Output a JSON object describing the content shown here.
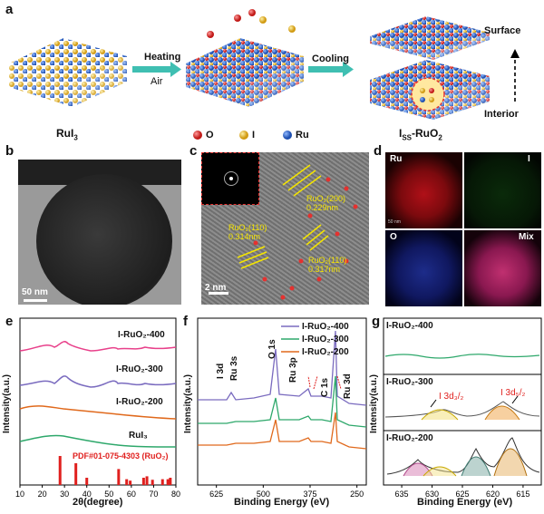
{
  "panel_a": {
    "letter": "a",
    "stage1": "RuI",
    "stage1_sub": "3",
    "step1_top": "Heating",
    "step1_bottom": "Air",
    "step2": "Cooling",
    "stage3_I": "I",
    "stage3_SS": "SS",
    "stage3_rest": "-RuO",
    "stage3_sub": "2",
    "surface": "Surface",
    "interior": "Interior",
    "legend": [
      {
        "label": "O",
        "color": "#e5312f"
      },
      {
        "label": "I",
        "color": "#f2c63b"
      },
      {
        "label": "Ru",
        "color": "#2e6fd6"
      }
    ]
  },
  "panel_b": {
    "letter": "b",
    "scale": "50 nm"
  },
  "panel_c": {
    "letter": "c",
    "scale": "2 nm",
    "annotations": [
      {
        "l1": "RuO₂(200)",
        "l2": "0.229nm"
      },
      {
        "l1": "RuO₂(110)",
        "l2": "0.314nm"
      },
      {
        "l1": "RuO₂(110)",
        "l2": "0.317nm"
      }
    ]
  },
  "panel_d": {
    "letter": "d",
    "labels": [
      "Ru",
      "I",
      "O",
      "Mix"
    ],
    "scale": "50 nm"
  },
  "colors": {
    "pink": "#e8408a",
    "purple": "#7a6bbf",
    "orange": "#e0691c",
    "green": "#2ea86b",
    "red": "#e0201e"
  },
  "chart_data": [
    {
      "type": "line",
      "panel": "e",
      "xlabel": "2θ(degree)",
      "ylabel": "Intensity(a.u.)",
      "xlim": [
        10,
        80
      ],
      "xticks": [
        10,
        20,
        30,
        40,
        50,
        60,
        70,
        80
      ],
      "series": [
        {
          "name": "I-RuO₂-400",
          "color": "#e8408a"
        },
        {
          "name": "I-RuO₂-300",
          "color": "#7a6bbf"
        },
        {
          "name": "I-RuO₂-200",
          "color": "#e0691c"
        },
        {
          "name": "RuI₃",
          "color": "#2ea86b"
        }
      ],
      "reference": {
        "label": "PDF#01-075-4303 (RuO₂)",
        "peaks": [
          28.0,
          35.1,
          40.0,
          54.3,
          57.9,
          59.5,
          65.5,
          67.0,
          69.5,
          74.0,
          76.4,
          77.5
        ],
        "heights": [
          1.0,
          0.75,
          0.25,
          0.55,
          0.2,
          0.15,
          0.25,
          0.3,
          0.18,
          0.2,
          0.2,
          0.25
        ]
      }
    },
    {
      "type": "line",
      "panel": "f",
      "xlabel": "Binding Energy (eV)",
      "ylabel": "Intensity(a.u.)",
      "xlim": [
        675,
        225
      ],
      "xticks": [
        625,
        500,
        375,
        250
      ],
      "series": [
        {
          "name": "I-RuO₂-400",
          "color": "#7a6bbf"
        },
        {
          "name": "I-RuO₂-300",
          "color": "#2ea86b"
        },
        {
          "name": "I-RuO₂-200",
          "color": "#e0691c"
        }
      ],
      "annotations": [
        "I 3d",
        "Ru 3s",
        "O 1s",
        "Ru 3p",
        "C 1s",
        "Ru 3d"
      ]
    },
    {
      "type": "line",
      "panel": "g",
      "xlabel": "Binding Energy (eV)",
      "ylabel": "Intensity(a.u.)",
      "xlim": [
        638,
        612
      ],
      "xticks": [
        635,
        630,
        625,
        620,
        615
      ],
      "subplots": [
        {
          "name": "I-RuO₂-400",
          "color": "#2ea86b"
        },
        {
          "name": "I-RuO₂-300",
          "annotations": [
            "I 3d₃/₂",
            "I 3d₅/₂"
          ]
        },
        {
          "name": "I-RuO₂-200"
        }
      ]
    }
  ]
}
